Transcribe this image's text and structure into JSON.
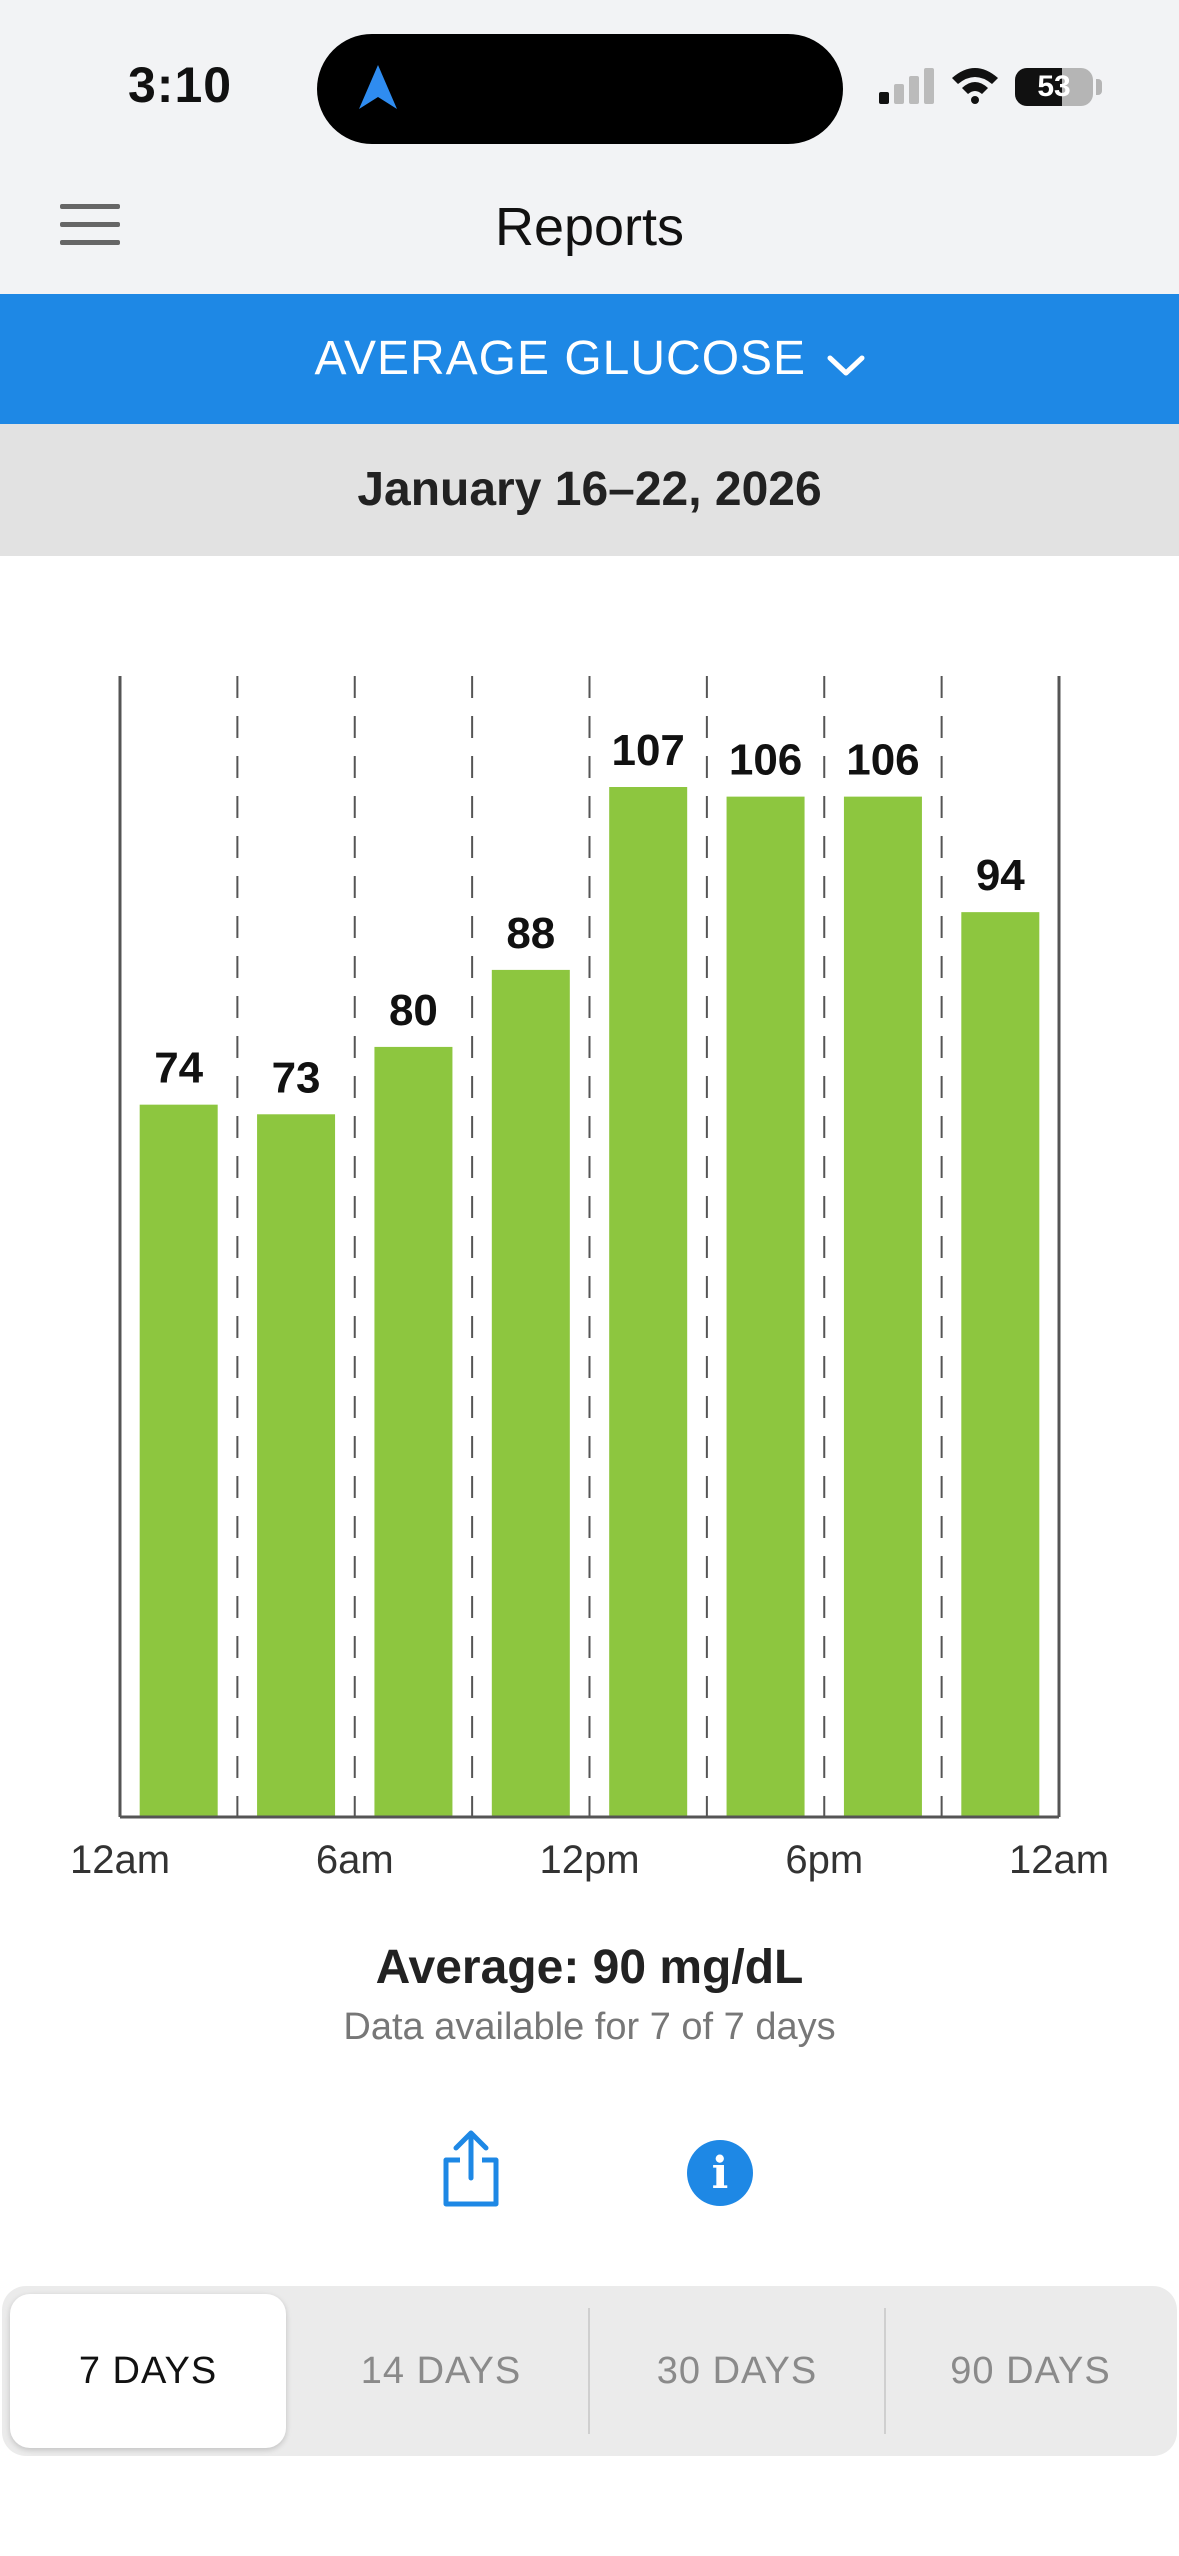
{
  "status_bar": {
    "time": "3:10",
    "battery": "53"
  },
  "nav": {
    "title": "Reports"
  },
  "report_selector": {
    "label": "AVERAGE GLUCOSE"
  },
  "date_range": "January 16–22, 2026",
  "chart_data": {
    "type": "bar",
    "categories": [
      "12am–3am",
      "3am–6am",
      "6am–9am",
      "9am–12pm",
      "12pm–3pm",
      "3pm–6pm",
      "6pm–9pm",
      "9pm–12am"
    ],
    "values": [
      74,
      73,
      80,
      88,
      107,
      106,
      106,
      94
    ],
    "x_tick_labels": [
      "12am",
      "6am",
      "12pm",
      "6pm",
      "12am"
    ],
    "ylim": [
      0,
      107
    ],
    "bar_color": "#8dc63f",
    "data_labels": true,
    "grid": "dashed vertical"
  },
  "summary": {
    "average": "Average: 90 mg/dL",
    "availability": "Data available for 7 of 7 days"
  },
  "actions": {
    "share_icon": "share-icon",
    "info_icon": "info-icon",
    "info_glyph": "i"
  },
  "range_tabs": [
    "7 DAYS",
    "14 DAYS",
    "30 DAYS",
    "90 DAYS"
  ],
  "colors": {
    "accent": "#1e88e5",
    "bar": "#8dc63f"
  }
}
